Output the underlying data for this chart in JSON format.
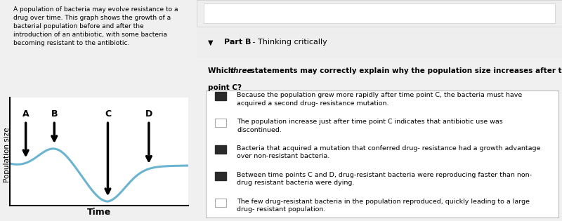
{
  "left_panel_bg": "#ddeef6",
  "right_panel_bg": "#f5f5f5",
  "answers_box_bg": "#ffffff",
  "page_bg": "#f0f0f0",
  "left_description": "A population of bacteria may evolve resistance to a\ndrug over time. This graph shows the growth of a\nbacterial population before and after the\nintroduction of an antibiotic, with some bacteria\nbecoming resistant to the antibiotic.",
  "graph_xlabel": "Time",
  "graph_ylabel": "Population size",
  "curve_color": "#6ab4d0",
  "curve_linewidth": 2.2,
  "part_b_bold": "Part B",
  "part_b_normal": " - Thinking critically",
  "question_bold": "Which ",
  "question_italic": "three",
  "question_rest": " statements may correctly explain why the population size increases after time\npoint C?",
  "answers": [
    {
      "text": "Because the population grew more rapidly after time point C, the bacteria must have\nacquired a second drug- resistance mutation.",
      "checked": true
    },
    {
      "text": "The population increase just after time point C indicates that antibiotic use was\ndiscontinued.",
      "checked": false
    },
    {
      "text": "Bacteria that acquired a mutation that conferred drug- resistance had a growth advantage\nover non-resistant bacteria.",
      "checked": true
    },
    {
      "text": "Between time points C and D, drug-resistant bacteria were reproducing faster than non-\ndrug resistant bacteria were dying.",
      "checked": true
    },
    {
      "text": "The few drug-resistant bacteria in the population reproduced, quickly leading to a large\ndrug- resistant population.",
      "checked": false
    }
  ],
  "arrow_points_x": [
    0.9,
    2.5,
    5.5,
    7.8
  ],
  "arrow_labels": [
    "A",
    "B",
    "C",
    "D"
  ]
}
